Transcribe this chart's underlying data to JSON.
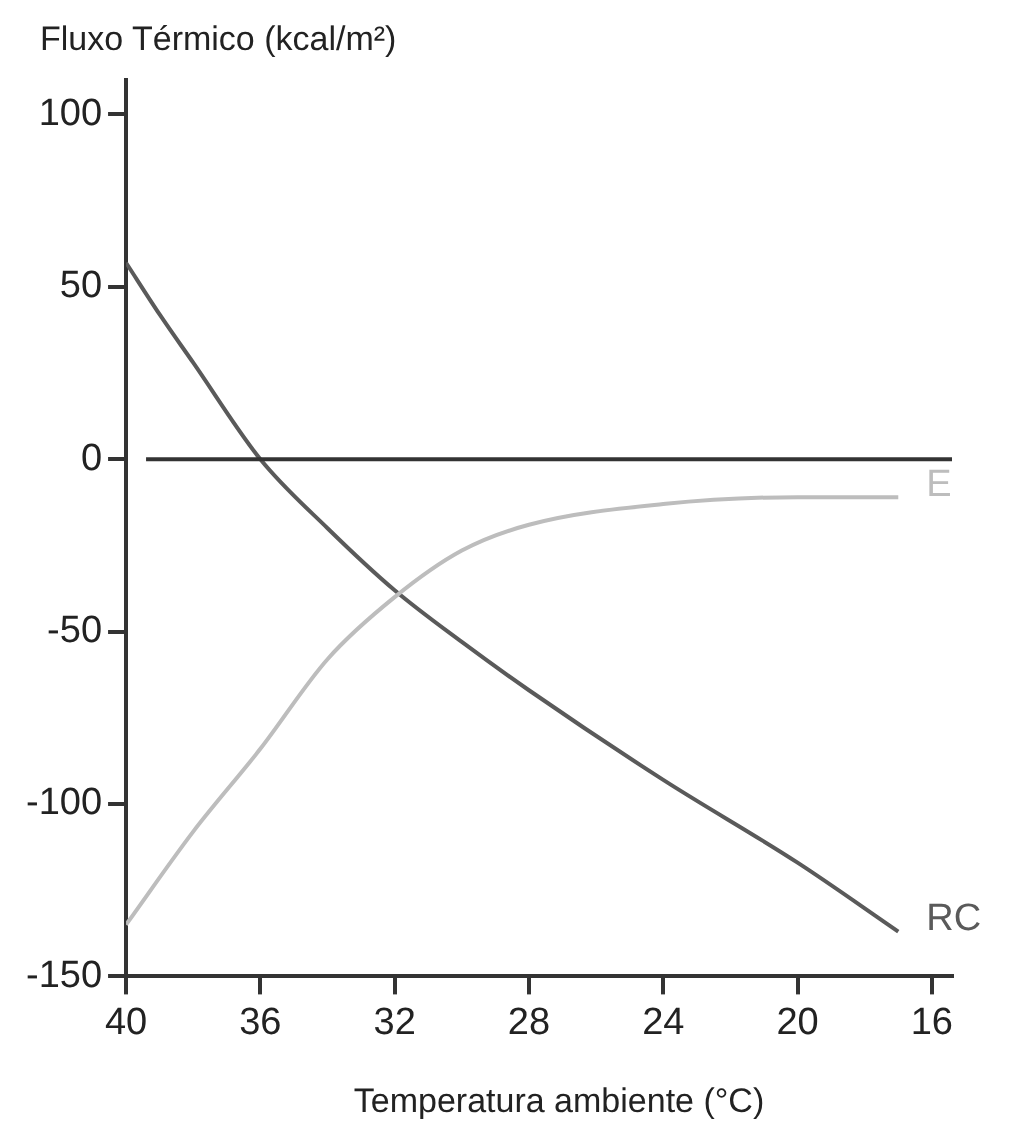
{
  "chart_data": {
    "type": "line",
    "ylabel": "Fluxo Térmico (kcal/m²)",
    "xlabel": "Temperatura ambiente (°C)",
    "xlim": [
      40,
      15.4
    ],
    "xticks": [
      40,
      36,
      32,
      28,
      24,
      20,
      16
    ],
    "ylim": [
      -150,
      110
    ],
    "yticks": [
      -150,
      -100,
      -50,
      0,
      50,
      100
    ],
    "grid": false,
    "legend": false,
    "marker": "none",
    "line_style": "solid",
    "ref_lines": [
      {
        "axis": "y",
        "value": 0,
        "color": "#333333"
      }
    ],
    "series": [
      {
        "name": "E",
        "color": "#bdbdbd",
        "x": [
          40,
          38,
          36,
          34,
          32,
          30,
          28,
          24,
          20,
          17
        ],
        "values": [
          -135,
          -108,
          -84,
          -58,
          -40,
          -26.5,
          -19,
          -13,
          -11,
          -11
        ]
      },
      {
        "name": "RC",
        "color": "#5a5a5a",
        "x": [
          40,
          39,
          38,
          36,
          34,
          32,
          30,
          28,
          24,
          20,
          17
        ],
        "values": [
          57,
          42,
          28,
          0,
          -20,
          -38,
          -53,
          -67,
          -93,
          -117,
          -137
        ]
      }
    ]
  }
}
